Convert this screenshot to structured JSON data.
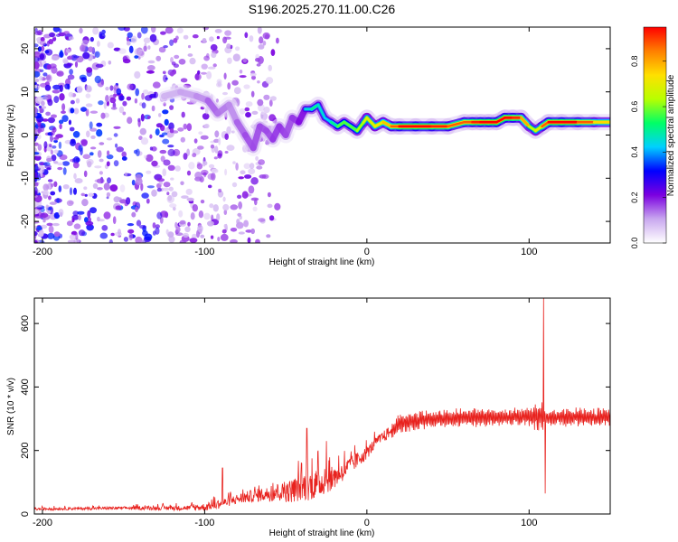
{
  "title": "S196.2025.270.11.00.C26",
  "chart_data": [
    {
      "type": "heatmap",
      "panel": "spectrogram",
      "xlabel": "Height of straight line (km)",
      "ylabel": "Frequency (Hz)",
      "xlim": [
        -205,
        150
      ],
      "ylim": [
        -25,
        25
      ],
      "xticks": [
        -200,
        -100,
        0,
        100
      ],
      "yticks": [
        -20,
        -10,
        0,
        10,
        20
      ],
      "ridge": {
        "description": "dominant frequency vs height",
        "x": [
          -125,
          -115,
          -105,
          -98,
          -92,
          -85,
          -80,
          -75,
          -70,
          -66,
          -62,
          -58,
          -54,
          -50,
          -46,
          -42,
          -38,
          -34,
          -30,
          -26,
          -22,
          -18,
          -14,
          -10,
          -6,
          -2,
          0,
          5,
          10,
          15,
          20,
          30,
          40,
          50,
          60,
          65,
          70,
          75,
          80,
          85,
          90,
          95,
          100,
          104,
          108,
          112,
          120,
          130,
          140,
          150
        ],
        "y": [
          9,
          10,
          9,
          8,
          5,
          7,
          3,
          0,
          -3,
          2,
          1,
          -1,
          2,
          0,
          4,
          3,
          6,
          6,
          7,
          4,
          3,
          2,
          3,
          2,
          1,
          3,
          4,
          2,
          3,
          2,
          2,
          2,
          2,
          2,
          3,
          3,
          3,
          3,
          3,
          4,
          4,
          4,
          2,
          1,
          2,
          3,
          3,
          3,
          3,
          3
        ],
        "amplitude": [
          0.15,
          0.2,
          0.2,
          0.25,
          0.3,
          0.2,
          0.25,
          0.3,
          0.3,
          0.3,
          0.3,
          0.3,
          0.35,
          0.3,
          0.3,
          0.35,
          0.4,
          0.5,
          0.5,
          0.4,
          0.45,
          0.55,
          0.6,
          0.55,
          0.6,
          0.65,
          0.7,
          0.7,
          0.75,
          0.8,
          0.95,
          0.95,
          0.95,
          0.9,
          0.85,
          0.9,
          0.95,
          0.95,
          0.95,
          0.95,
          0.95,
          0.9,
          0.7,
          0.6,
          0.8,
          0.95,
          0.95,
          0.95,
          0.8,
          0.7
        ]
      },
      "noise_region": {
        "x_from": -205,
        "x_to": -55,
        "description": "scattered low-amplitude violet noise across all frequencies"
      },
      "colorbar": {
        "label": "Normalized spectral amplitude",
        "range": [
          0.0,
          0.95
        ],
        "ticks": [
          "0.0",
          "0.2",
          "0.4",
          "0.6",
          "0.8"
        ],
        "colors": [
          "#ffffff",
          "#c9a8ef",
          "#7b00e0",
          "#0000ff",
          "#00d0ff",
          "#00ff66",
          "#b8ff00",
          "#ffe000",
          "#ff7f00",
          "#ff0000"
        ]
      }
    },
    {
      "type": "line",
      "panel": "snr",
      "xlabel": "Height of straight line (km)",
      "ylabel": "SNR (10 * v/v)",
      "xlim": [
        -205,
        150
      ],
      "ylim": [
        0,
        680
      ],
      "xticks": [
        -200,
        -100,
        0,
        100
      ],
      "yticks": [
        0,
        200,
        400,
        600
      ],
      "line_color": "#e8221e",
      "envelope": {
        "x": [
          -205,
          -150,
          -110,
          -100,
          -90,
          -80,
          -70,
          -60,
          -50,
          -45,
          -40,
          -35,
          -30,
          -25,
          -20,
          -15,
          -10,
          -5,
          0,
          5,
          10,
          15,
          20,
          25,
          30,
          40,
          50,
          60,
          70,
          80,
          90,
          100,
          105,
          108,
          110,
          112,
          120,
          130,
          140,
          150
        ],
        "baseline": [
          15,
          18,
          18,
          20,
          30,
          45,
          55,
          60,
          65,
          70,
          80,
          85,
          90,
          100,
          110,
          130,
          150,
          170,
          190,
          220,
          240,
          260,
          280,
          285,
          290,
          295,
          295,
          300,
          300,
          300,
          300,
          300,
          300,
          300,
          300,
          300,
          300,
          300,
          300,
          300
        ],
        "amplitude": [
          10,
          12,
          20,
          30,
          35,
          40,
          50,
          60,
          80,
          100,
          110,
          120,
          120,
          100,
          90,
          80,
          70,
          60,
          50,
          45,
          45,
          50,
          60,
          60,
          60,
          55,
          55,
          55,
          55,
          55,
          55,
          60,
          80,
          90,
          40,
          50,
          55,
          55,
          55,
          55
        ]
      },
      "spikes": [
        {
          "x": -89,
          "y": 145
        },
        {
          "x": -37,
          "y": 270
        },
        {
          "x": -25,
          "y": 230
        },
        {
          "x": 109,
          "y": 680
        },
        {
          "x": 110,
          "y": 65
        }
      ]
    }
  ]
}
